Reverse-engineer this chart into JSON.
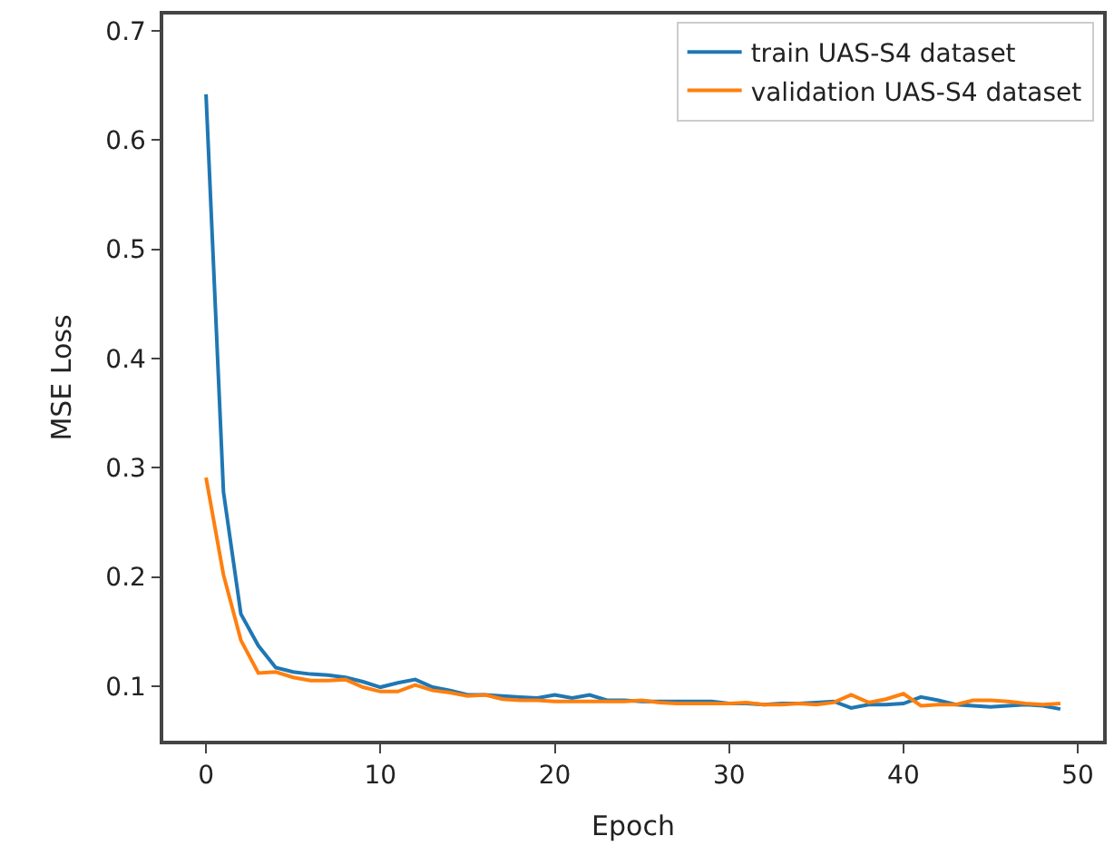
{
  "chart_data": {
    "type": "line",
    "xlabel": "Epoch",
    "ylabel": "MSE Loss",
    "x": [
      0,
      1,
      2,
      3,
      4,
      5,
      6,
      7,
      8,
      9,
      10,
      11,
      12,
      13,
      14,
      15,
      16,
      17,
      18,
      19,
      20,
      21,
      22,
      23,
      24,
      25,
      26,
      27,
      28,
      29,
      30,
      31,
      32,
      33,
      34,
      35,
      36,
      37,
      38,
      39,
      40,
      41,
      42,
      43,
      44,
      45,
      46,
      47,
      48,
      49
    ],
    "series": [
      {
        "name": "train UAS-S4 dataset",
        "color": "#1f77b4",
        "values": [
          0.642,
          0.278,
          0.166,
          0.137,
          0.117,
          0.113,
          0.111,
          0.11,
          0.108,
          0.104,
          0.099,
          0.103,
          0.106,
          0.099,
          0.096,
          0.092,
          0.092,
          0.091,
          0.09,
          0.089,
          0.092,
          0.089,
          0.092,
          0.087,
          0.087,
          0.086,
          0.086,
          0.086,
          0.086,
          0.086,
          0.084,
          0.084,
          0.083,
          0.084,
          0.084,
          0.085,
          0.086,
          0.08,
          0.083,
          0.083,
          0.084,
          0.09,
          0.087,
          0.083,
          0.082,
          0.081,
          0.082,
          0.083,
          0.082,
          0.079
        ]
      },
      {
        "name": "validation UAS-S4 dataset",
        "color": "#ff7f0e",
        "values": [
          0.291,
          0.202,
          0.142,
          0.112,
          0.113,
          0.108,
          0.105,
          0.105,
          0.106,
          0.099,
          0.095,
          0.095,
          0.101,
          0.096,
          0.094,
          0.091,
          0.092,
          0.088,
          0.087,
          0.087,
          0.086,
          0.086,
          0.086,
          0.086,
          0.086,
          0.087,
          0.085,
          0.084,
          0.084,
          0.084,
          0.084,
          0.085,
          0.083,
          0.083,
          0.084,
          0.083,
          0.085,
          0.092,
          0.085,
          0.088,
          0.093,
          0.082,
          0.083,
          0.083,
          0.087,
          0.087,
          0.086,
          0.084,
          0.083,
          0.084
        ]
      }
    ],
    "xlim": [
      -2.45,
      51.45
    ],
    "xticks": [
      0,
      10,
      20,
      30,
      40,
      50
    ],
    "ylim": [
      0.05,
      0.715
    ],
    "yticks": [
      {
        "value": 0.1,
        "label": "0.1"
      },
      {
        "value": 0.2,
        "label": "0.2"
      },
      {
        "value": 0.3,
        "label": "0.3"
      },
      {
        "value": 0.4,
        "label": "0.4"
      },
      {
        "value": 0.5,
        "label": "0.5"
      },
      {
        "value": 0.6,
        "label": "0.6"
      },
      {
        "value": 0.7,
        "label": "0.7"
      }
    ],
    "legend": "top right",
    "marker": "none",
    "line_style": "solid"
  }
}
